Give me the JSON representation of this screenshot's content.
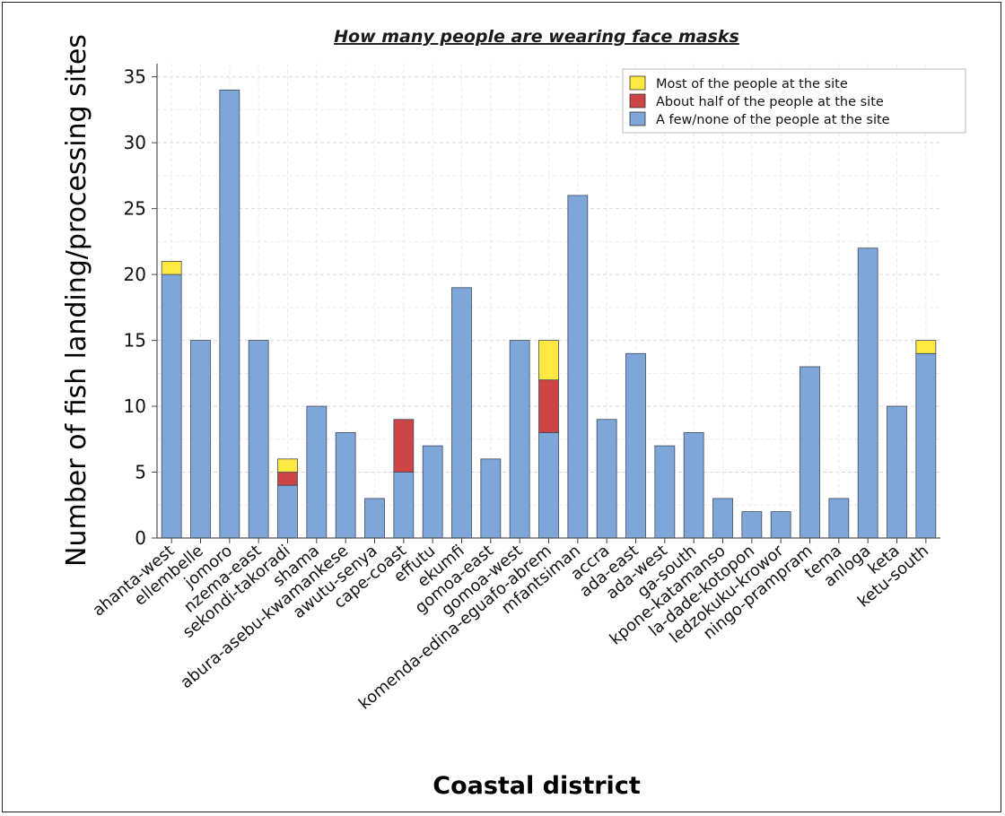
{
  "chart_data": {
    "type": "bar",
    "stacked": true,
    "title": "How many people are wearing face masks",
    "xlabel": "Coastal district",
    "ylabel": "Number of fish landing/processing sites",
    "ylim": [
      0,
      36
    ],
    "yticks": [
      0,
      5,
      10,
      15,
      20,
      25,
      30,
      35
    ],
    "grid": true,
    "legend_position": "top-right",
    "categories": [
      "ahanta-west",
      "ellembelle",
      "jomoro",
      "nzema-east",
      "sekondi-takoradi",
      "shama",
      "abura-asebu-kwamankese",
      "awutu-senya",
      "cape-coast",
      "effutu",
      "ekumfi",
      "gomoa-east",
      "gomoa-west",
      "komenda-edina-eguafo-abrem",
      "mfantsiman",
      "accra",
      "ada-east",
      "ada-west",
      "ga-south",
      "kpone-katamanso",
      "la-dade-kotopon",
      "ledzokuku-krowor",
      "ningo-prampram",
      "tema",
      "anloga",
      "keta",
      "ketu-south"
    ],
    "series": [
      {
        "name": "A few/none of the people at the site",
        "color": "#7fa6d9",
        "values": [
          20,
          15,
          34,
          15,
          4,
          10,
          8,
          3,
          5,
          7,
          19,
          6,
          15,
          8,
          26,
          9,
          14,
          7,
          8,
          3,
          2,
          2,
          13,
          3,
          22,
          10,
          14
        ]
      },
      {
        "name": "About half of the people at the site",
        "color": "#cc4444",
        "values": [
          0,
          0,
          0,
          0,
          1,
          0,
          0,
          0,
          4,
          0,
          0,
          0,
          0,
          4,
          0,
          0,
          0,
          0,
          0,
          0,
          0,
          0,
          0,
          0,
          0,
          0,
          0
        ]
      },
      {
        "name": "Most of the people at the site",
        "color": "#ffe840",
        "values": [
          1,
          0,
          0,
          0,
          1,
          0,
          0,
          0,
          0,
          0,
          0,
          0,
          0,
          3,
          0,
          0,
          0,
          0,
          0,
          0,
          0,
          0,
          0,
          0,
          0,
          0,
          1
        ]
      }
    ],
    "legend_order": [
      "Most of the people at the site",
      "About half of the people at the site",
      "A few/none of the people at the site"
    ]
  }
}
